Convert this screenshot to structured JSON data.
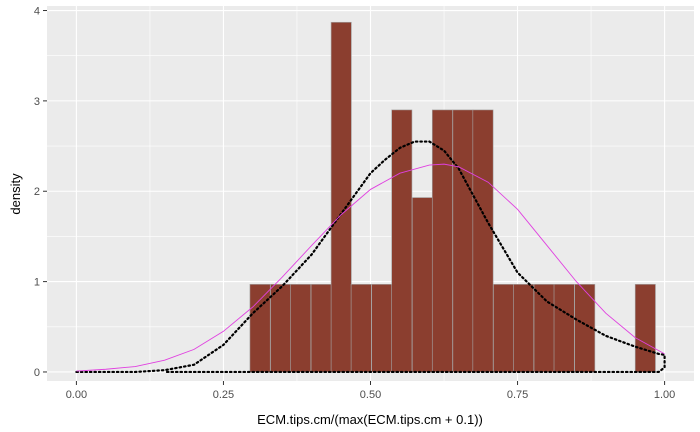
{
  "chart_data": {
    "type": "histogram",
    "title": "",
    "xlabel": "ECM.tips.cm/(max(ECM.tips.cm + 0.1))",
    "ylabel": "density",
    "xlim": [
      -0.05,
      1.05
    ],
    "ylim": [
      -0.1,
      4.05
    ],
    "x_ticks": [
      0.0,
      0.25,
      0.5,
      0.75,
      1.0
    ],
    "x_tick_labels": [
      "0.00",
      "0.25",
      "0.50",
      "0.75",
      "1.00"
    ],
    "y_ticks": [
      0,
      1,
      2,
      3,
      4
    ],
    "y_tick_labels": [
      "0",
      "1",
      "2",
      "3",
      "4"
    ],
    "grid": true,
    "bin_width": 0.0345,
    "bars": [
      {
        "x": 0.295,
        "density": 0.97
      },
      {
        "x": 0.33,
        "density": 0.97
      },
      {
        "x": 0.364,
        "density": 0.97
      },
      {
        "x": 0.399,
        "density": 0.97
      },
      {
        "x": 0.433,
        "density": 3.87
      },
      {
        "x": 0.467,
        "density": 0.97
      },
      {
        "x": 0.502,
        "density": 0.97
      },
      {
        "x": 0.536,
        "density": 2.9
      },
      {
        "x": 0.571,
        "density": 1.93
      },
      {
        "x": 0.605,
        "density": 2.9
      },
      {
        "x": 0.64,
        "density": 2.9
      },
      {
        "x": 0.674,
        "density": 2.9
      },
      {
        "x": 0.709,
        "density": 0.97
      },
      {
        "x": 0.743,
        "density": 0.97
      },
      {
        "x": 0.778,
        "density": 0.97
      },
      {
        "x": 0.812,
        "density": 0.97
      },
      {
        "x": 0.847,
        "density": 0.97
      },
      {
        "x": 0.95,
        "density": 0.97
      }
    ],
    "series": [
      {
        "style": "dotted",
        "color": "#000000",
        "points": [
          [
            0.0,
            0.0
          ],
          [
            0.05,
            0.0
          ],
          [
            0.1,
            0.0
          ],
          [
            0.15,
            0.02
          ],
          [
            0.2,
            0.08
          ],
          [
            0.25,
            0.3
          ],
          [
            0.3,
            0.65
          ],
          [
            0.35,
            0.95
          ],
          [
            0.4,
            1.3
          ],
          [
            0.45,
            1.75
          ],
          [
            0.5,
            2.2
          ],
          [
            0.525,
            2.35
          ],
          [
            0.55,
            2.48
          ],
          [
            0.575,
            2.55
          ],
          [
            0.6,
            2.55
          ],
          [
            0.625,
            2.45
          ],
          [
            0.65,
            2.25
          ],
          [
            0.7,
            1.65
          ],
          [
            0.75,
            1.1
          ],
          [
            0.8,
            0.78
          ],
          [
            0.85,
            0.58
          ],
          [
            0.9,
            0.4
          ],
          [
            0.95,
            0.28
          ],
          [
            0.975,
            0.23
          ],
          [
            0.99,
            0.2
          ],
          [
            1.0,
            0.19
          ],
          [
            1.0,
            0.05
          ],
          [
            0.99,
            0.0
          ],
          [
            0.9,
            0.0
          ],
          [
            0.8,
            0.0
          ],
          [
            0.7,
            0.0
          ],
          [
            0.6,
            0.0
          ],
          [
            0.5,
            0.0
          ],
          [
            0.4,
            0.0
          ],
          [
            0.3,
            0.0
          ],
          [
            0.2,
            0.0
          ],
          [
            0.15,
            0.0
          ]
        ]
      },
      {
        "style": "solid",
        "color": "#e040e0",
        "points": [
          [
            0.0,
            0.01
          ],
          [
            0.05,
            0.03
          ],
          [
            0.1,
            0.06
          ],
          [
            0.15,
            0.13
          ],
          [
            0.2,
            0.25
          ],
          [
            0.25,
            0.45
          ],
          [
            0.3,
            0.72
          ],
          [
            0.35,
            1.05
          ],
          [
            0.4,
            1.4
          ],
          [
            0.45,
            1.74
          ],
          [
            0.5,
            2.02
          ],
          [
            0.55,
            2.2
          ],
          [
            0.6,
            2.29
          ],
          [
            0.625,
            2.3
          ],
          [
            0.65,
            2.27
          ],
          [
            0.7,
            2.1
          ],
          [
            0.75,
            1.8
          ],
          [
            0.8,
            1.4
          ],
          [
            0.85,
            1.0
          ],
          [
            0.9,
            0.65
          ],
          [
            0.95,
            0.38
          ],
          [
            1.0,
            0.2
          ]
        ]
      }
    ],
    "colors": {
      "panel_bg": "#ebebeb",
      "grid_major": "#ffffff",
      "bar_fill": "#8b3e2f",
      "bar_edge": "#a6a6a6"
    }
  }
}
